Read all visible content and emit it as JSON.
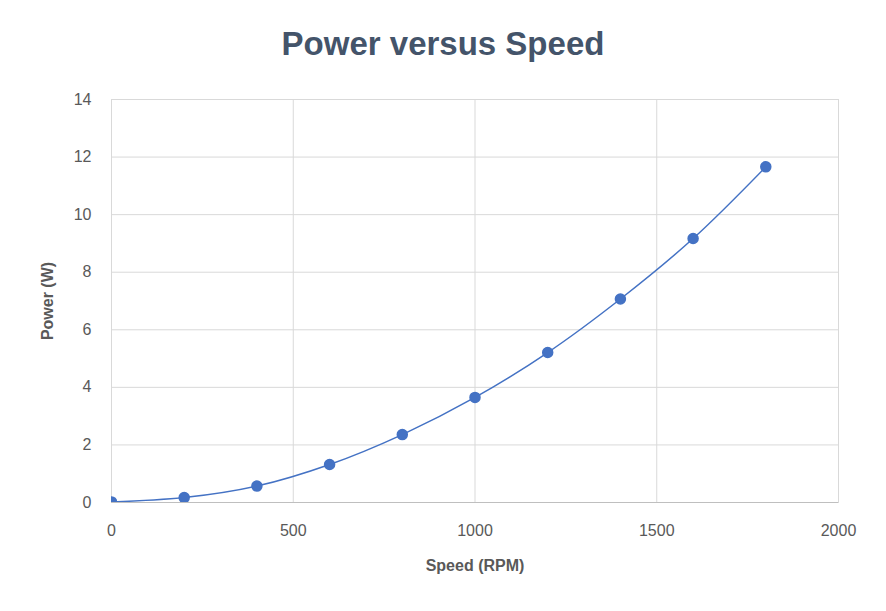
{
  "chart_data": {
    "type": "line",
    "title": "Power versus Speed",
    "x_label": "Speed (RPM)",
    "y_label": "Power (W)",
    "x": [
      0,
      200,
      400,
      600,
      800,
      1000,
      1200,
      1400,
      1600,
      1800
    ],
    "values": [
      0.02,
      0.17,
      0.57,
      1.32,
      2.36,
      3.65,
      5.21,
      7.07,
      9.17,
      11.66
    ],
    "color": "#4472c4",
    "marker": "circle",
    "line_style": "smooth",
    "xlim": [
      0,
      2000
    ],
    "xticks": [
      0,
      500,
      1000,
      1500,
      2000
    ],
    "ylim": [
      0,
      14
    ],
    "yticks": [
      0,
      2,
      4,
      6,
      8,
      10,
      12,
      14
    ],
    "grid": true
  }
}
